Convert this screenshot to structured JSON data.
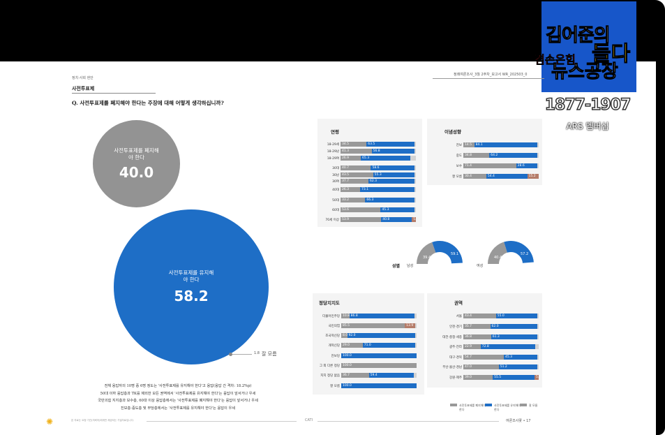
{
  "logo": {
    "line1": "김어준의",
    "line2a": "겸손은힘",
    "line2b": "들다",
    "line3": "뉴스공장",
    "phone": "1877-1907",
    "ars": "ARS 멤버십"
  },
  "document": {
    "section_small": "정치·사회 현안",
    "section_title": "사전투표제",
    "header": "정례여론조사_3월 2주차_보고서    WR_202503_0",
    "question": "Q. 사전투표제를 폐지해야 한다는 주장에 대해 어떻게 생각하십니까?",
    "abolish_label": "사전투표제를 폐지해야 한다",
    "abolish_value": "40.0",
    "keep_label": "사전투표제를 유지해야 한다",
    "keep_value": "58.2",
    "dontknow_value": "1.8",
    "dontknow_label": "잘 모름",
    "summary_lines": [
      "전체 응답자의 10명 중 6명 정도는 '사전투표제를 유지해야 한다'고 응답(응답 간 격차: 18.2%p)",
      "50대 이하 응답층과 TK를 제외한 모든 권역에서 '사전투표제를 유지해야 한다'는 응답이 앞서거나 우세",
      "국민의힘 지지층과 보수층, 60대 이상 응답층에서는 '사전투표제를 폐지해야 한다'는 응답이 앞서거나 우세",
      "진보층·중도층 및 무당층에서는 '사전투표제를 유지해야 한다'는 응답이 우세"
    ],
    "footer_left": "본 자료는 요청 기관(의뢰처)에게만 제공되는 기밀자료입니다.",
    "footer_mid": "CATI",
    "footer_right": "여론조사꽃 • 17"
  },
  "panels": {
    "age_title": "연령",
    "ideology_title": "이념성향",
    "gender_title": "성별",
    "party_title": "정당지지도",
    "region_title": "권역"
  },
  "age_rows": [
    {
      "label": "18-29세",
      "a": 34.5,
      "k": 63.5,
      "d": 2.0
    },
    {
      "label": "18-29남",
      "a": 41.3,
      "k": 56.8,
      "d": 1.9
    },
    {
      "label": "18-29여",
      "a": 26.9,
      "k": 65.3,
      "d": 7.8
    },
    {
      "label": "30대",
      "a": 40.7,
      "k": 58.6,
      "d": 0.7
    },
    {
      "label": "30남",
      "a": 43.5,
      "k": 55.3,
      "d": 1.2
    },
    {
      "label": "30여",
      "a": 37.7,
      "k": 62.3,
      "d": 0.0
    },
    {
      "label": "40대",
      "a": 26.3,
      "k": 73.1,
      "d": 0.6
    },
    {
      "label": "50대",
      "a": 33.2,
      "k": 66.3,
      "d": 0.5
    },
    {
      "label": "60대",
      "a": 53.6,
      "k": 45.3,
      "d": 1.1
    },
    {
      "label": "70세 이상",
      "a": 53.9,
      "k": 40.8,
      "o": 5.3
    }
  ],
  "ideology_rows": [
    {
      "label": "진보",
      "a": 14.5,
      "k": 84.1,
      "d": 1.4
    },
    {
      "label": "중도",
      "a": 34.8,
      "k": 64.2,
      "d": 1.0
    },
    {
      "label": "보수",
      "a": 71.4,
      "k": 28.6,
      "d": 0.0
    },
    {
      "label": "잘 모름",
      "a": 30.4,
      "k": 54.4,
      "o": 15.2
    }
  ],
  "gender": {
    "male_label": "남성",
    "female_label": "여성",
    "male_abolish": 39.4,
    "male_keep": 59.1,
    "female_abolish": 40.4,
    "female_keep": 57.2
  },
  "party_rows": [
    {
      "label": "더불어민주당",
      "a": 10.8,
      "k": 86.8,
      "d": 2.4
    },
    {
      "label": "국민의힘",
      "a": 85.5,
      "o": 13.9,
      "d": 0.6
    },
    {
      "label": "조국혁신당",
      "a": 8.0,
      "k": 92.0,
      "d": 0.0
    },
    {
      "label": "개혁신당",
      "a": 29.0,
      "k": 71.0,
      "d": 0.0
    },
    {
      "label": "진보당",
      "k": 100.0
    },
    {
      "label": "그 외 다른 정당",
      "a": 100.0
    },
    {
      "label": "지지 정당 없음",
      "a": 36.7,
      "k": 59.4,
      "d": 3.9
    },
    {
      "label": "잘 모름",
      "k": 100.0
    }
  ],
  "region_rows": [
    {
      "label": "서울",
      "a": 43.4,
      "k": 55.0,
      "d": 1.6
    },
    {
      "label": "인천·경기",
      "a": 35.7,
      "k": 62.0,
      "d": 2.3
    },
    {
      "label": "대전·충청·세종",
      "a": 36.8,
      "k": 61.3,
      "d": 1.9
    },
    {
      "label": "광주·전라",
      "a": 22.9,
      "k": 72.8,
      "d": 4.3
    },
    {
      "label": "대구·경북",
      "a": 54.7,
      "k": 45.3,
      "d": 0.0
    },
    {
      "label": "부산·울산·경남",
      "a": 47.0,
      "k": 51.2,
      "d": 1.8
    },
    {
      "label": "강원·제주",
      "a": 39.0,
      "k": 55.5,
      "o": 5.5
    }
  ],
  "legend": {
    "abolish": "사전투표제를 폐지해야 한다",
    "keep": "사전투표제를 유지해야 한다",
    "dontknow": "잘 모름"
  },
  "colors": {
    "abolish": "#999999",
    "keep": "#1e6ec6",
    "other": "#b57c69",
    "dontknow": "#d4d4d4"
  }
}
